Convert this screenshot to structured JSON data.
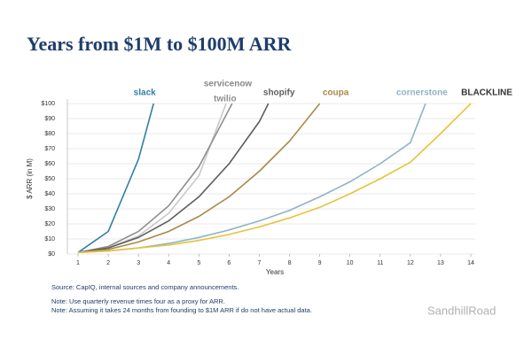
{
  "chart_data": {
    "type": "line",
    "title": "Years from $1M to $100M ARR",
    "y_label": "$ ARR (in M)",
    "x_label": "Years",
    "xlim": [
      1,
      14
    ],
    "xticks": [
      1,
      2,
      3,
      4,
      5,
      6,
      7,
      8,
      9,
      10,
      11,
      12,
      13,
      14
    ],
    "ylim": [
      0,
      100
    ],
    "yticks": [
      {
        "value": 0,
        "label": "$0"
      },
      {
        "value": 10,
        "label": "$10"
      },
      {
        "value": 20,
        "label": "$20"
      },
      {
        "value": 30,
        "label": "$30"
      },
      {
        "value": 40,
        "label": "$40"
      },
      {
        "value": 50,
        "label": "$50"
      },
      {
        "value": 60,
        "label": "$60"
      },
      {
        "value": 70,
        "label": "$70"
      },
      {
        "value": 80,
        "label": "$80"
      },
      {
        "value": 90,
        "label": "$90"
      },
      {
        "value": 100,
        "label": "$100"
      }
    ],
    "grid": true,
    "series": [
      {
        "name": "slack",
        "color": "#2f7fa6",
        "x": [
          1,
          2,
          3,
          3.5
        ],
        "values": [
          1,
          15,
          63,
          100
        ]
      },
      {
        "name": "servicenow",
        "color": "#c9c9c9",
        "x": [
          1,
          2,
          3,
          4,
          5,
          5.9
        ],
        "values": [
          1,
          4,
          12,
          27,
          52,
          100
        ]
      },
      {
        "name": "twilio",
        "color": "#8e8e8e",
        "x": [
          1,
          2,
          3,
          4,
          5,
          6.1
        ],
        "values": [
          1,
          5,
          15,
          32,
          58,
          100
        ]
      },
      {
        "name": "shopify",
        "color": "#5e5e5e",
        "x": [
          1,
          2,
          3,
          4,
          5,
          6,
          7,
          7.3
        ],
        "values": [
          1,
          4,
          11,
          22,
          38,
          60,
          88,
          100
        ]
      },
      {
        "name": "coupa",
        "color": "#a8894a",
        "x": [
          1,
          2,
          3,
          4,
          5,
          6,
          7,
          8,
          9
        ],
        "values": [
          1,
          3,
          8,
          15,
          25,
          38,
          55,
          75,
          100
        ]
      },
      {
        "name": "cornerstone",
        "color": "#8fb3c6",
        "x": [
          1,
          2,
          3,
          4,
          5,
          6,
          7,
          8,
          9,
          10,
          11,
          12,
          12.5
        ],
        "values": [
          1,
          2,
          4,
          7,
          11,
          16,
          22,
          29,
          38,
          48,
          60,
          74,
          100
        ]
      },
      {
        "name": "BLACKLINE",
        "color": "#e8c33a",
        "x": [
          1,
          2,
          3,
          4,
          5,
          6,
          7,
          8,
          9,
          10,
          11,
          12,
          13,
          14
        ],
        "values": [
          1,
          2,
          4,
          6,
          9,
          13,
          18,
          24,
          31,
          40,
          50,
          61,
          80,
          100
        ]
      }
    ],
    "notes": [
      "Source: CapIQ, internal sources and company announcements.",
      "Note: Use quarterly revenue times four as a proxy for ARR.",
      "Note: Assuming it takes 24 months from founding to $1M ARR if do not have actual data."
    ],
    "watermark": "SandhillRoad"
  }
}
